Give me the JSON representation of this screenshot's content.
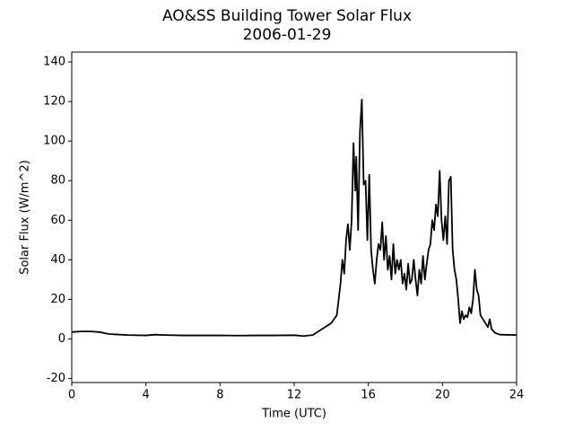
{
  "chart_data": {
    "type": "line",
    "title": "AO&SS Building Tower Solar Flux",
    "subtitle": "2006-01-29",
    "x_label": "Time (UTC)",
    "y_label": "Solar Flux (W/m^2)",
    "x": [
      0,
      0.5,
      1,
      1.5,
      2,
      3,
      4,
      4.5,
      5,
      6,
      7,
      8,
      9,
      10,
      11,
      12,
      12.5,
      13,
      13.5,
      14,
      14.3,
      14.5,
      14.6,
      14.7,
      14.8,
      14.9,
      15.0,
      15.1,
      15.2,
      15.3,
      15.35,
      15.45,
      15.55,
      15.65,
      15.75,
      15.85,
      15.95,
      16.05,
      16.15,
      16.25,
      16.35,
      16.45,
      16.55,
      16.65,
      16.75,
      16.85,
      16.95,
      17.05,
      17.15,
      17.25,
      17.35,
      17.45,
      17.55,
      17.65,
      17.75,
      17.85,
      17.95,
      18.05,
      18.15,
      18.25,
      18.35,
      18.45,
      18.55,
      18.65,
      18.75,
      18.85,
      18.95,
      19.05,
      19.15,
      19.25,
      19.35,
      19.45,
      19.55,
      19.65,
      19.75,
      19.85,
      19.95,
      20.05,
      20.15,
      20.25,
      20.35,
      20.45,
      20.55,
      20.65,
      20.75,
      20.85,
      20.95,
      21.05,
      21.15,
      21.25,
      21.35,
      21.45,
      21.55,
      21.65,
      21.75,
      21.85,
      21.95,
      22.05,
      22.25,
      22.45,
      22.55,
      22.65,
      22.85,
      23.1,
      24
    ],
    "series": [
      {
        "name": "Solar Flux",
        "color": "#000000",
        "values": [
          3.5,
          3.8,
          3.8,
          3.5,
          2.5,
          2,
          1.8,
          2.2,
          2,
          1.8,
          1.8,
          1.8,
          1.7,
          1.8,
          1.8,
          1.9,
          1.5,
          2,
          5,
          8,
          12,
          28,
          40,
          33,
          50,
          58,
          45,
          60,
          99,
          75,
          92,
          55,
          105,
          121,
          78,
          80,
          50,
          83,
          45,
          35,
          28,
          40,
          48,
          45,
          59,
          40,
          52,
          35,
          42,
          30,
          48,
          33,
          40,
          35,
          40,
          28,
          33,
          25,
          38,
          28,
          30,
          40,
          30,
          22,
          35,
          28,
          42,
          30,
          38,
          45,
          48,
          60,
          55,
          68,
          62,
          85,
          60,
          50,
          62,
          48,
          80,
          82,
          45,
          35,
          30,
          20,
          8,
          14,
          10,
          12,
          11,
          16,
          13,
          20,
          35,
          25,
          22,
          12,
          9,
          6,
          10,
          5,
          3,
          2.2,
          2
        ]
      }
    ],
    "xlim": [
      0,
      24
    ],
    "xticks": [
      0,
      4,
      8,
      12,
      16,
      20,
      24
    ],
    "ylim": [
      -22,
      145
    ],
    "yticks": [
      -20,
      0,
      20,
      40,
      60,
      80,
      100,
      120,
      140
    ]
  }
}
